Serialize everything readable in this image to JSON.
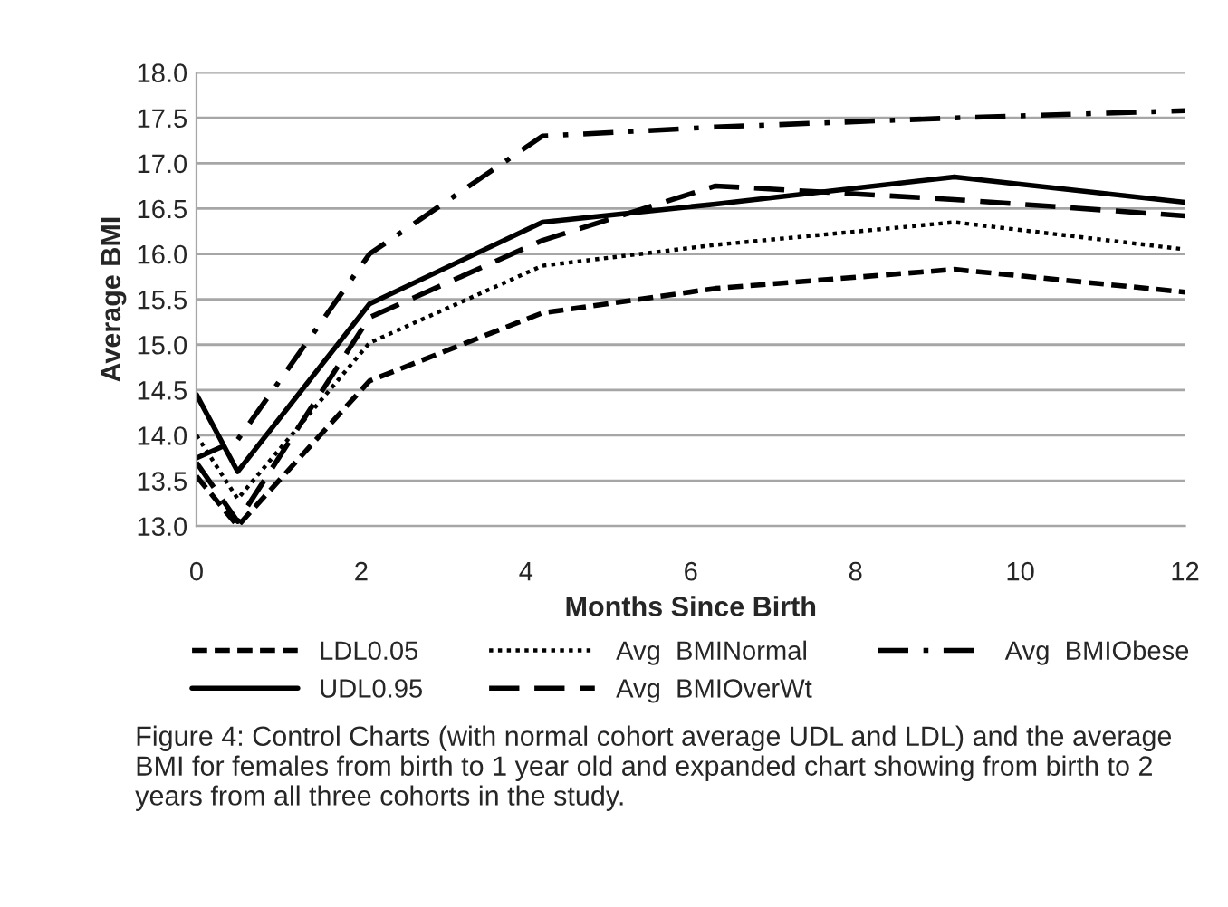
{
  "chart_data": {
    "type": "line",
    "xlabel": "Months Since Birth",
    "ylabel": "Average BMI",
    "xlim": [
      0,
      12
    ],
    "xticks": [
      0,
      2,
      4,
      6,
      8,
      10,
      12
    ],
    "ylim": [
      13.0,
      18.0
    ],
    "yticks": [
      {
        "value": 13.0,
        "label": "13.0"
      },
      {
        "value": 13.5,
        "label": "13.5"
      },
      {
        "value": 14.0,
        "label": "14.0"
      },
      {
        "value": 14.5,
        "label": "14.5"
      },
      {
        "value": 15.0,
        "label": "15.0"
      },
      {
        "value": 15.5,
        "label": "15.5"
      },
      {
        "value": 16.0,
        "label": "16.0"
      },
      {
        "value": 16.5,
        "label": "16.5"
      },
      {
        "value": 17.0,
        "label": "17.0"
      },
      {
        "value": 17.5,
        "label": "17.5"
      },
      {
        "value": 18.0,
        "label": "18.0"
      }
    ],
    "x": [
      0,
      0.5,
      2.1,
      4.2,
      6.3,
      9.2,
      12
    ],
    "series": [
      {
        "name": "LDL0.05",
        "color": "#000000",
        "line_style": "dashed",
        "values": [
          13.55,
          13.0,
          14.6,
          15.35,
          15.62,
          15.83,
          15.58
        ]
      },
      {
        "name": "UDL0.95",
        "color": "#000000",
        "line_style": "solid",
        "values": [
          14.45,
          13.6,
          15.45,
          16.35,
          16.55,
          16.85,
          16.57
        ]
      },
      {
        "name": "Avg  BMINormal",
        "color": "#000000",
        "line_style": "dotted",
        "values": [
          14.0,
          13.3,
          15.02,
          15.87,
          16.1,
          16.35,
          16.05
        ]
      },
      {
        "name": "Avg  BMIOverWt",
        "color": "#000000",
        "line_style": "longdashed",
        "values": [
          13.7,
          13.05,
          15.3,
          16.15,
          16.75,
          16.6,
          16.42
        ]
      },
      {
        "name": "Avg  BMIObese",
        "color": "#000000",
        "line_style": "dashdot",
        "values": [
          13.75,
          13.95,
          16.0,
          17.3,
          17.4,
          17.5,
          17.58
        ]
      }
    ],
    "grid": "y",
    "legend": "bottom",
    "marker": "none",
    "annotations": [
      "Figure 4: Control Charts (with normal cohort average UDL and LDL) and the average BMI for females from birth to 1 year old and expanded chart showing from birth to 2 years from all three cohorts in the study."
    ]
  }
}
